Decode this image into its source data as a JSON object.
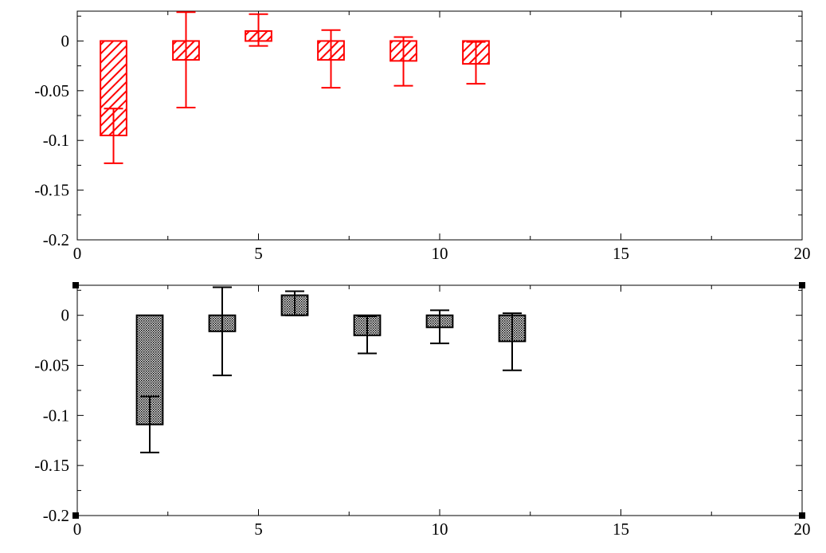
{
  "chart_data": [
    {
      "type": "bar",
      "title": "",
      "xlabel": "",
      "ylabel": "",
      "xlim": [
        0,
        20
      ],
      "ylim": [
        -0.2,
        0.03
      ],
      "x_ticks": [
        0,
        5,
        10,
        15,
        20
      ],
      "x_tick_labels": [
        "0",
        "5",
        "10",
        "15",
        "20"
      ],
      "y_ticks": [
        0,
        -0.05,
        -0.1,
        -0.15,
        -0.2
      ],
      "y_tick_labels": [
        "0",
        "-0.05",
        "-0.1",
        "-0.15",
        "-0.2"
      ],
      "grid": false,
      "color": "#ff0000",
      "fill_pattern": "diagonal-hatch",
      "series": [
        {
          "x": [
            1,
            3,
            5,
            7,
            9,
            11
          ],
          "values": [
            -0.095,
            -0.019,
            0.01,
            -0.019,
            -0.02,
            -0.023
          ],
          "error_low": [
            -0.123,
            -0.067,
            -0.005,
            -0.047,
            -0.045,
            -0.043
          ],
          "error_high": [
            -0.068,
            0.029,
            0.027,
            0.011,
            0.004,
            -0.001
          ]
        }
      ]
    },
    {
      "type": "bar",
      "title": "",
      "xlabel": "",
      "ylabel": "",
      "xlim": [
        0,
        20
      ],
      "ylim": [
        -0.2,
        0.03
      ],
      "x_ticks": [
        0,
        5,
        10,
        15,
        20
      ],
      "x_tick_labels": [
        "0",
        "5",
        "10",
        "15",
        "20"
      ],
      "y_ticks": [
        0,
        -0.05,
        -0.1,
        -0.15,
        -0.2
      ],
      "y_tick_labels": [
        "0",
        "-0.05",
        "-0.1",
        "-0.15",
        "-0.2"
      ],
      "grid": false,
      "color": "#000000",
      "fill_pattern": "dots",
      "series": [
        {
          "x": [
            2,
            4,
            6,
            8,
            10,
            12
          ],
          "values": [
            -0.109,
            -0.016,
            0.02,
            -0.02,
            -0.012,
            -0.026
          ],
          "error_low": [
            -0.137,
            -0.06,
            0.0,
            -0.038,
            -0.028,
            -0.055
          ],
          "error_high": [
            -0.081,
            0.028,
            0.024,
            -0.001,
            0.005,
            0.002
          ]
        }
      ]
    }
  ]
}
